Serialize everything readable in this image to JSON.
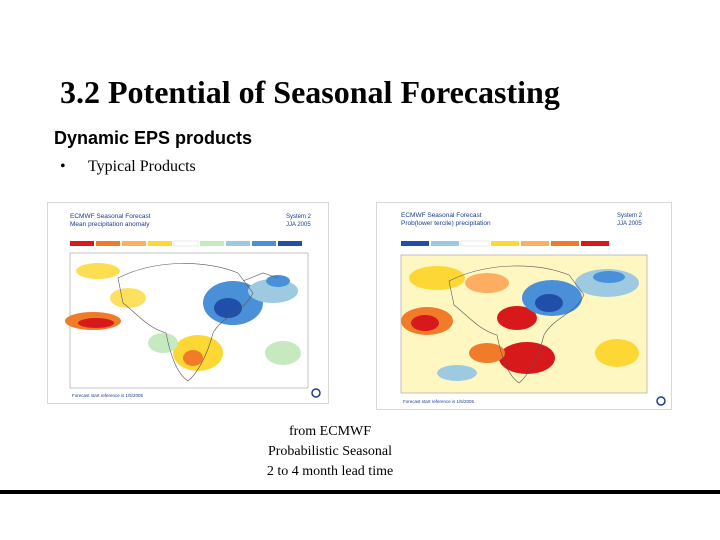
{
  "slide": {
    "title": "3.2 Potential of Seasonal Forecasting",
    "subtitle": "Dynamic EPS products",
    "bullet_glyph": "•",
    "bullet_text": "Typical Products"
  },
  "figures": {
    "left": {
      "title_line1": "ECMWF Seasonal Forecast",
      "title_line2": "Mean precipitation anomaly",
      "system_line1": "System 2",
      "system_line2": "JJA 2005",
      "footer": "Forecast start reference is 1/5/2005"
    },
    "right": {
      "title_line1": "ECMWF Seasonal Forecast",
      "title_line2": "Prob(lower tercile)  precipitation",
      "system_line1": "System 2",
      "system_line2": "JJA 2005",
      "footer": "Forecast start reference is 1/5/2005"
    }
  },
  "caption": {
    "line1": "from ECMWF",
    "line2": "Probabilistic Seasonal",
    "line3": "2 to 4 month lead time"
  },
  "colors": {
    "dry_dark": "#d7191c",
    "dry_mid": "#f07c2a",
    "dry_light": "#fdd835",
    "wet_light": "#9ecae1",
    "wet_mid": "#4a90d9",
    "wet_dark": "#1f4fa8",
    "land_outline": "#555555"
  }
}
